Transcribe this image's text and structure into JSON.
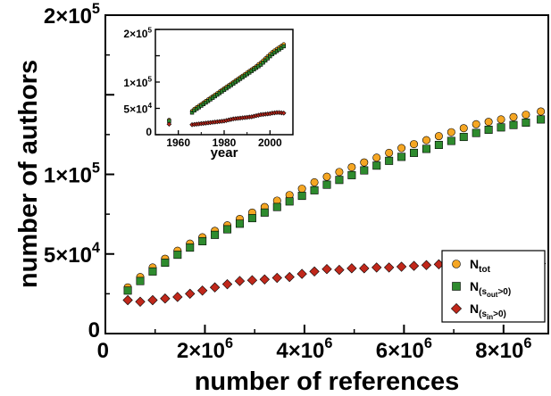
{
  "chart_data": [
    {
      "type": "scatter",
      "xlabel": "number of references",
      "ylabel": "number of authors",
      "xlim": [
        0,
        8900000
      ],
      "ylim": [
        0,
        200000
      ],
      "x_ticks": [
        {
          "value": 0,
          "mantissa": "0",
          "exp": ""
        },
        {
          "value": 2000000,
          "mantissa": "2×10",
          "exp": "6"
        },
        {
          "value": 4000000,
          "mantissa": "4×10",
          "exp": "6"
        },
        {
          "value": 6000000,
          "mantissa": "6×10",
          "exp": "6"
        },
        {
          "value": 8000000,
          "mantissa": "8×10",
          "exp": "6"
        }
      ],
      "y_ticks": [
        {
          "value": 0,
          "mantissa": "0",
          "exp": ""
        },
        {
          "value": 50000,
          "mantissa": "5×10",
          "exp": "4"
        },
        {
          "value": 100000,
          "mantissa": "1×10",
          "exp": "5"
        },
        {
          "value": 150000,
          "mantissa": "",
          "exp": ""
        },
        {
          "value": 200000,
          "mantissa": "2×10",
          "exp": "5"
        }
      ],
      "legend": {
        "position": "bottom-right",
        "entries": [
          {
            "label_main": "N",
            "label_sub": "tot",
            "sub_inner": "",
            "sub_rest": "",
            "marker": "circle",
            "color": "#f5a623"
          },
          {
            "label_main": "N",
            "label_sub": "(s",
            "sub_inner": "out",
            "sub_rest": ">0)",
            "marker": "square",
            "color": "#2e8b2e"
          },
          {
            "label_main": "N",
            "label_sub": "(s",
            "sub_inner": "in",
            "sub_rest": ">0)",
            "marker": "diamond",
            "color": "#c0281b"
          }
        ]
      },
      "x": [
        450000,
        700000,
        950000,
        1200000,
        1450000,
        1700000,
        1950000,
        2200000,
        2450000,
        2700000,
        2950000,
        3200000,
        3450000,
        3700000,
        3950000,
        4200000,
        4450000,
        4700000,
        4950000,
        5200000,
        5450000,
        5700000,
        5950000,
        6200000,
        6450000,
        6700000,
        6950000,
        7200000,
        7450000,
        7700000,
        7950000,
        8200000,
        8450000,
        8750000
      ],
      "series": [
        {
          "name": "N_tot",
          "marker": "circle",
          "color": "#f5a623",
          "values": [
            29000,
            35500,
            41500,
            47000,
            52000,
            56500,
            60500,
            64500,
            68000,
            72000,
            76000,
            79500,
            83500,
            87000,
            91000,
            95000,
            98500,
            101500,
            104500,
            107500,
            110500,
            113500,
            116500,
            119000,
            121500,
            124000,
            126500,
            129000,
            131500,
            133000,
            134500,
            136000,
            137500,
            139500
          ]
        },
        {
          "name": "N_(s_out>0)",
          "marker": "square",
          "color": "#2e8b2e",
          "values": [
            27000,
            33000,
            39000,
            44500,
            49500,
            54000,
            58000,
            62000,
            65500,
            69000,
            72500,
            76000,
            79500,
            83000,
            86500,
            90000,
            93500,
            96500,
            99500,
            102500,
            105500,
            108500,
            111000,
            113500,
            116000,
            118500,
            121000,
            123500,
            126000,
            128000,
            129500,
            131000,
            132500,
            134500
          ]
        },
        {
          "name": "N_(s_in>0)",
          "marker": "diamond",
          "color": "#c0281b",
          "values": [
            21000,
            20000,
            21000,
            22000,
            23000,
            25000,
            27000,
            29000,
            31000,
            33000,
            33500,
            34000,
            35000,
            35500,
            37500,
            39000,
            40500,
            40000,
            41000,
            41000,
            41500,
            41500,
            42000,
            42500,
            43000,
            43500,
            43500,
            44000,
            44000,
            44000,
            45500,
            44000,
            44500,
            44000
          ]
        }
      ]
    },
    {
      "type": "scatter",
      "xlabel": "year",
      "ylabel": "",
      "xlim": [
        1950,
        2010
      ],
      "ylim": [
        0,
        200000
      ],
      "x_ticks": [
        {
          "value": 1960,
          "label": "1960"
        },
        {
          "value": 1980,
          "label": "1980"
        },
        {
          "value": 2000,
          "label": "2000"
        }
      ],
      "y_ticks": [
        {
          "value": 0,
          "mantissa": "0",
          "exp": ""
        },
        {
          "value": 50000,
          "mantissa": "5×10",
          "exp": "4"
        },
        {
          "value": 100000,
          "mantissa": "1×10",
          "exp": "5"
        },
        {
          "value": 150000,
          "mantissa": "",
          "exp": ""
        },
        {
          "value": 200000,
          "mantissa": "2×10",
          "exp": "5"
        }
      ],
      "x": [
        1956,
        1966,
        1967,
        1968,
        1969,
        1970,
        1971,
        1972,
        1973,
        1974,
        1975,
        1976,
        1977,
        1978,
        1979,
        1980,
        1981,
        1982,
        1983,
        1984,
        1985,
        1986,
        1987,
        1988,
        1989,
        1990,
        1991,
        1992,
        1993,
        1994,
        1995,
        1996,
        1997,
        1998,
        1999,
        2000,
        2001,
        2002,
        2003,
        2004,
        2005,
        2006
      ],
      "series": [
        {
          "name": "N_tot",
          "marker": "circle",
          "color": "#f5a623",
          "values": [
            28000,
            45000,
            49000,
            52000,
            55000,
            58000,
            61000,
            64000,
            67000,
            70000,
            73000,
            76000,
            79000,
            82000,
            85000,
            88000,
            91000,
            94000,
            97000,
            100000,
            103000,
            106000,
            109000,
            112000,
            115000,
            118000,
            121000,
            124000,
            127000,
            130000,
            134000,
            137000,
            141000,
            145000,
            149000,
            153000,
            157000,
            160000,
            163000,
            166000,
            169000,
            172000
          ]
        },
        {
          "name": "N_(s_out>0)",
          "marker": "square",
          "color": "#2e8b2e",
          "values": [
            26000,
            42000,
            46000,
            49000,
            52000,
            55000,
            58000,
            61000,
            64000,
            67000,
            70000,
            73000,
            76000,
            79000,
            82000,
            85000,
            88000,
            91000,
            94000,
            97000,
            100000,
            103000,
            106000,
            109000,
            112000,
            115000,
            118000,
            121000,
            124000,
            127000,
            130000,
            133000,
            137000,
            141000,
            145000,
            149000,
            153000,
            156000,
            159000,
            162000,
            165000,
            168000
          ]
        },
        {
          "name": "N_(s_in>0)",
          "marker": "diamond",
          "color": "#c0281b",
          "values": [
            20000,
            19000,
            19500,
            20000,
            20500,
            21000,
            21500,
            22000,
            22500,
            23000,
            23500,
            24000,
            24500,
            25000,
            25500,
            26000,
            27000,
            28000,
            29000,
            30000,
            30500,
            31000,
            31500,
            32000,
            32500,
            33000,
            33500,
            34000,
            35000,
            36000,
            37000,
            38000,
            38500,
            39000,
            39500,
            40000,
            41000,
            41500,
            42000,
            42000,
            41500,
            41000
          ]
        }
      ]
    }
  ]
}
